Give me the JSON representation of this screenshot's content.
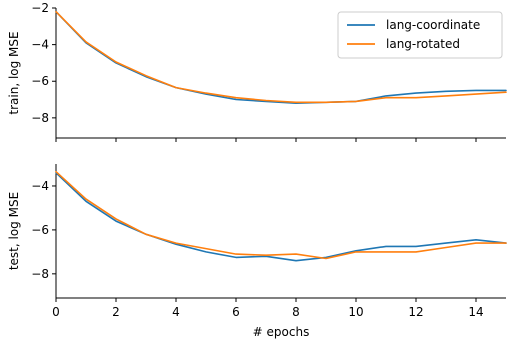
{
  "chart_data": [
    {
      "type": "line",
      "ylabel": "train, log MSE",
      "xlim": [
        0,
        15
      ],
      "ylim": [
        -9.1,
        -2
      ],
      "yticks": [
        -2,
        -4,
        -6,
        -8
      ],
      "xticks": [],
      "grid": false,
      "legend": "top-right",
      "series": [
        {
          "name": "lang-coordinate",
          "color": "#1f77b4",
          "x": [
            0,
            1,
            2,
            3,
            4,
            5,
            6,
            7,
            8,
            9,
            10,
            11,
            12,
            13,
            14,
            15
          ],
          "y": [
            -2.2,
            -3.9,
            -5.0,
            -5.75,
            -6.35,
            -6.7,
            -7.0,
            -7.1,
            -7.2,
            -7.15,
            -7.1,
            -6.8,
            -6.65,
            -6.55,
            -6.5,
            -6.5
          ]
        },
        {
          "name": "lang-rotated",
          "color": "#ff7f0e",
          "x": [
            0,
            1,
            2,
            3,
            4,
            5,
            6,
            7,
            8,
            9,
            10,
            11,
            12,
            13,
            14,
            15
          ],
          "y": [
            -2.2,
            -3.85,
            -4.95,
            -5.7,
            -6.35,
            -6.65,
            -6.9,
            -7.05,
            -7.15,
            -7.15,
            -7.1,
            -6.9,
            -6.9,
            -6.8,
            -6.7,
            -6.6
          ]
        }
      ]
    },
    {
      "type": "line",
      "xlabel": "# epochs",
      "ylabel": "test, log MSE",
      "xlim": [
        0,
        15
      ],
      "ylim": [
        -9.1,
        -3
      ],
      "yticks": [
        -4,
        -6,
        -8
      ],
      "xticks": [
        0,
        2,
        4,
        6,
        8,
        10,
        12,
        14
      ],
      "grid": false,
      "series": [
        {
          "name": "lang-coordinate",
          "color": "#1f77b4",
          "x": [
            0,
            1,
            2,
            3,
            4,
            5,
            6,
            7,
            8,
            9,
            10,
            11,
            12,
            13,
            14,
            15
          ],
          "y": [
            -3.4,
            -4.7,
            -5.6,
            -6.2,
            -6.65,
            -7.0,
            -7.25,
            -7.2,
            -7.4,
            -7.25,
            -6.95,
            -6.75,
            -6.75,
            -6.6,
            -6.45,
            -6.6
          ]
        },
        {
          "name": "lang-rotated",
          "color": "#ff7f0e",
          "x": [
            0,
            1,
            2,
            3,
            4,
            5,
            6,
            7,
            8,
            9,
            10,
            11,
            12,
            13,
            14,
            15
          ],
          "y": [
            -3.35,
            -4.6,
            -5.5,
            -6.2,
            -6.6,
            -6.85,
            -7.1,
            -7.15,
            -7.1,
            -7.3,
            -7.0,
            -7.0,
            -7.0,
            -6.8,
            -6.6,
            -6.6
          ]
        }
      ]
    }
  ]
}
